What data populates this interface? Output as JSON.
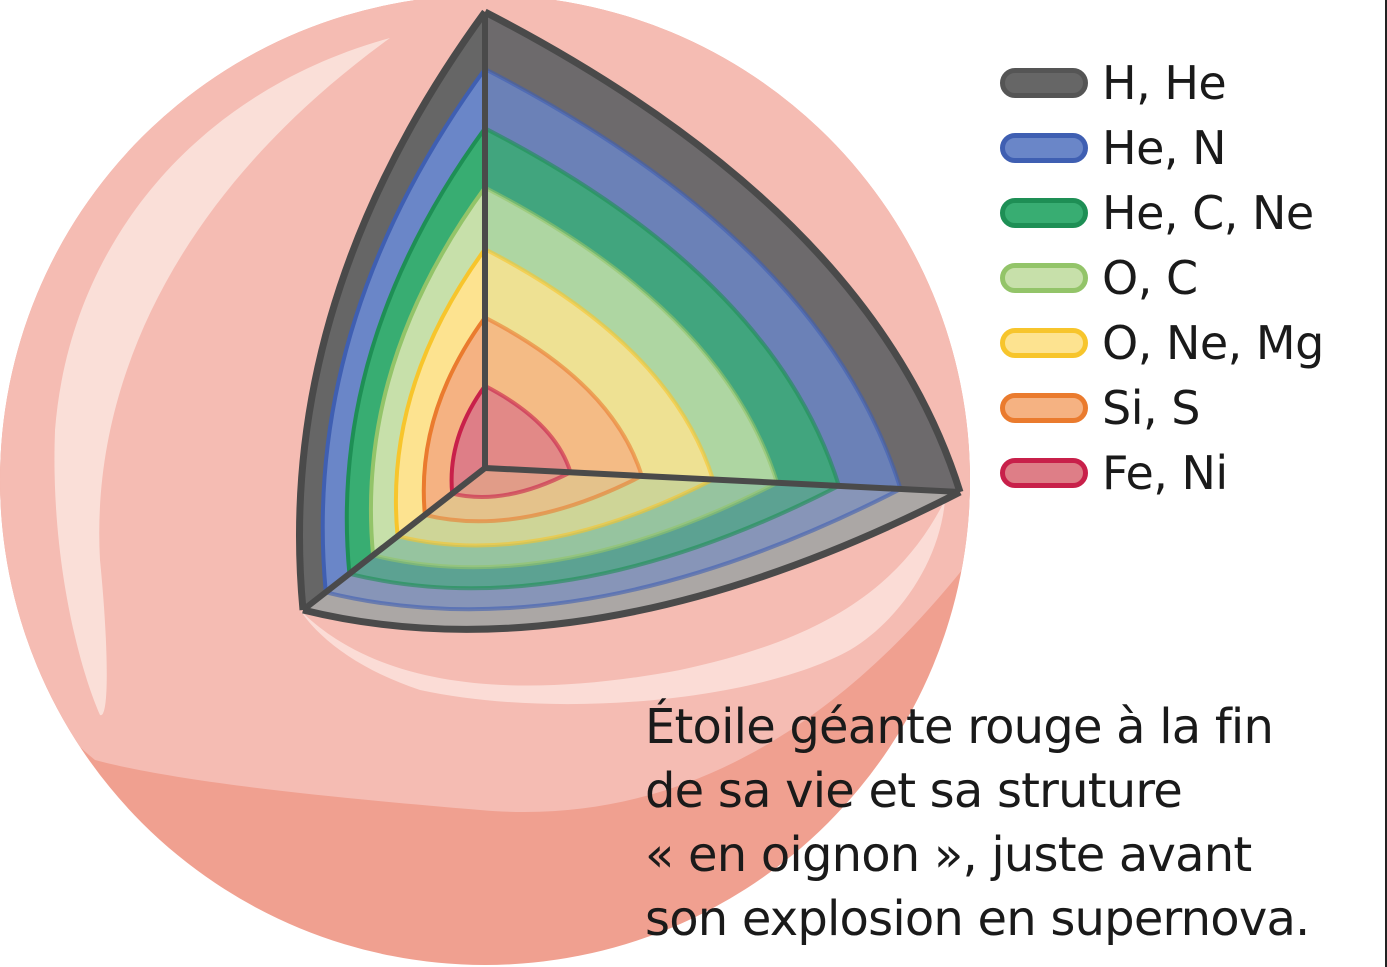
{
  "legend": [
    {
      "label": "H, He",
      "fill": "#666666",
      "stroke": "#555555"
    },
    {
      "label": "He, N",
      "fill": "#6a86c8",
      "stroke": "#3f5fb2"
    },
    {
      "label": "He, C, Ne",
      "fill": "#38ad72",
      "stroke": "#1e8f55"
    },
    {
      "label": "O, C",
      "fill": "#c7e0aa",
      "stroke": "#93c469"
    },
    {
      "label": "O, Ne, Mg",
      "fill": "#fde390",
      "stroke": "#f7c52c"
    },
    {
      "label": "Si, S",
      "fill": "#f5b282",
      "stroke": "#ea7b2e"
    },
    {
      "label": "Fe, Ni",
      "fill": "#de7e87",
      "stroke": "#c8204a"
    }
  ],
  "caption": {
    "lines": [
      "Étoile géante rouge à la fin",
      "de sa vie et sa struture",
      "« en oignon », juste avant",
      "son explosion en supernova."
    ]
  },
  "colors": {
    "star_outer": "#f0a090",
    "star_mid": "#f5bcb3",
    "star_highlight": "#fbe2dc",
    "back_panel_tint": "#8c7a88",
    "floor_tint": "#fff6f2",
    "edge": "#4a4a4a"
  }
}
